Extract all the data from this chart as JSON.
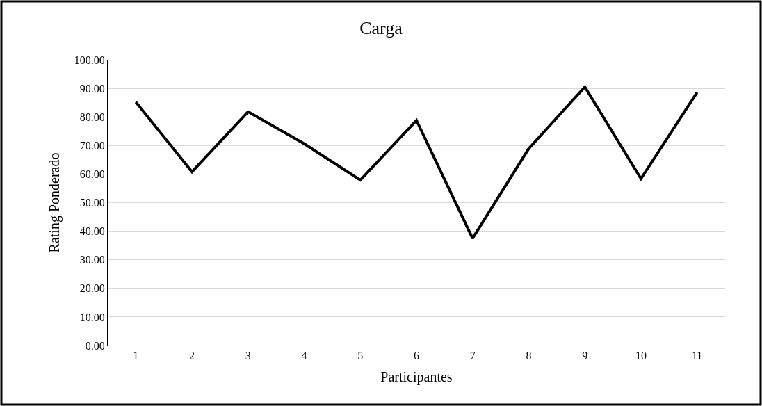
{
  "chart_data": {
    "type": "line",
    "title": "Carga",
    "xlabel": "Participantes",
    "ylabel": "Rating Ponderado",
    "categories": [
      "1",
      "2",
      "3",
      "4",
      "5",
      "6",
      "7",
      "8",
      "9",
      "10",
      "11"
    ],
    "series": [
      {
        "color": "#000000",
        "values": [
          85.2,
          60.8,
          81.8,
          70.6,
          57.9,
          78.8,
          37.5,
          68.9,
          90.5,
          58.4,
          88.6
        ]
      }
    ],
    "ylim": [
      0,
      100
    ],
    "yticks": [
      {
        "value": 0,
        "label": "0.00"
      },
      {
        "value": 10,
        "label": "10.00"
      },
      {
        "value": 20,
        "label": "20.00"
      },
      {
        "value": 30,
        "label": "30.00"
      },
      {
        "value": 40,
        "label": "40.00"
      },
      {
        "value": 50,
        "label": "50.00"
      },
      {
        "value": 60,
        "label": "60.00"
      },
      {
        "value": 70,
        "label": "70.00"
      },
      {
        "value": 80,
        "label": "80.00"
      },
      {
        "value": 90,
        "label": "90.00"
      },
      {
        "value": 100,
        "label": "100.00"
      }
    ],
    "grid": "y",
    "marker": "none",
    "line_style": "solid"
  }
}
